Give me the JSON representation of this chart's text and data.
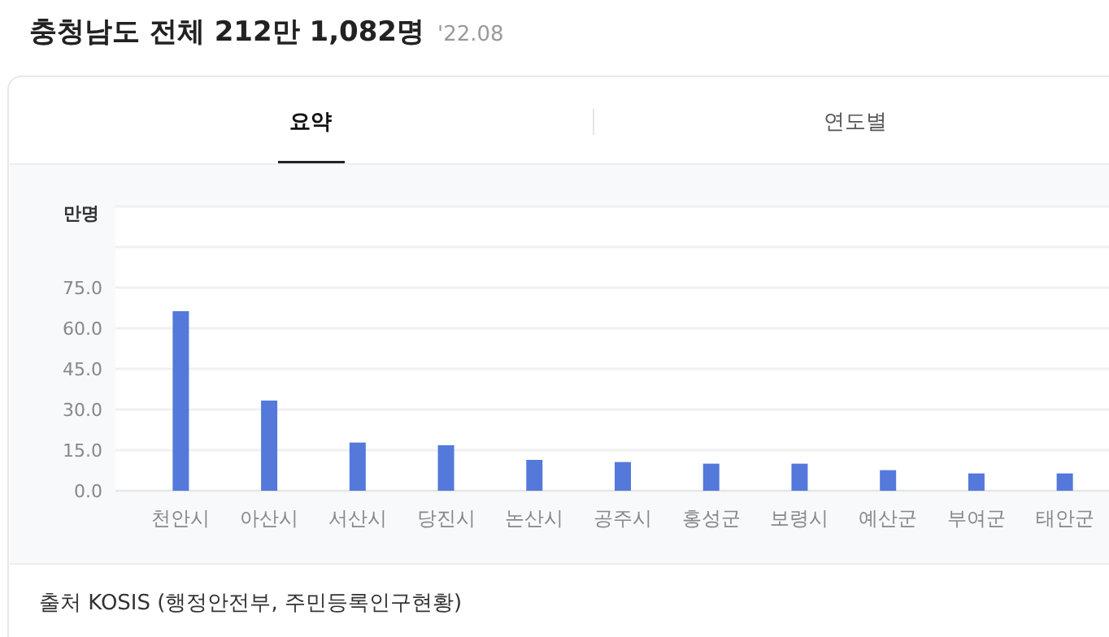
{
  "chart_data": {
    "type": "bar",
    "title": "충청남도 전체 212만 1,082명",
    "subtitle": "'22.08",
    "ylabel": "만명",
    "categories": [
      "천안시",
      "아산시",
      "서산시",
      "당진시",
      "논산시",
      "공주시",
      "홍성군",
      "보령시",
      "예산군",
      "부여군",
      "태안군"
    ],
    "values": [
      66.3,
      33.3,
      17.8,
      16.8,
      11.4,
      10.6,
      10.0,
      10.0,
      7.6,
      6.4,
      6.4
    ],
    "color": "#5479db",
    "ylim": [
      0,
      105
    ],
    "yticks": [
      {
        "value": 0,
        "label": "0.0"
      },
      {
        "value": 15,
        "label": "15.0"
      },
      {
        "value": 30,
        "label": "30.0"
      },
      {
        "value": 45,
        "label": "45.0"
      },
      {
        "value": 60,
        "label": "60.0"
      },
      {
        "value": 75,
        "label": "75.0"
      },
      {
        "value": 90,
        "label": null
      },
      {
        "value": 105,
        "label": null
      }
    ],
    "grid": "y",
    "annotations": [
      "요약",
      "연도별",
      "출처 KOSIS (행정안전부, 주민등록인구현황)"
    ]
  }
}
